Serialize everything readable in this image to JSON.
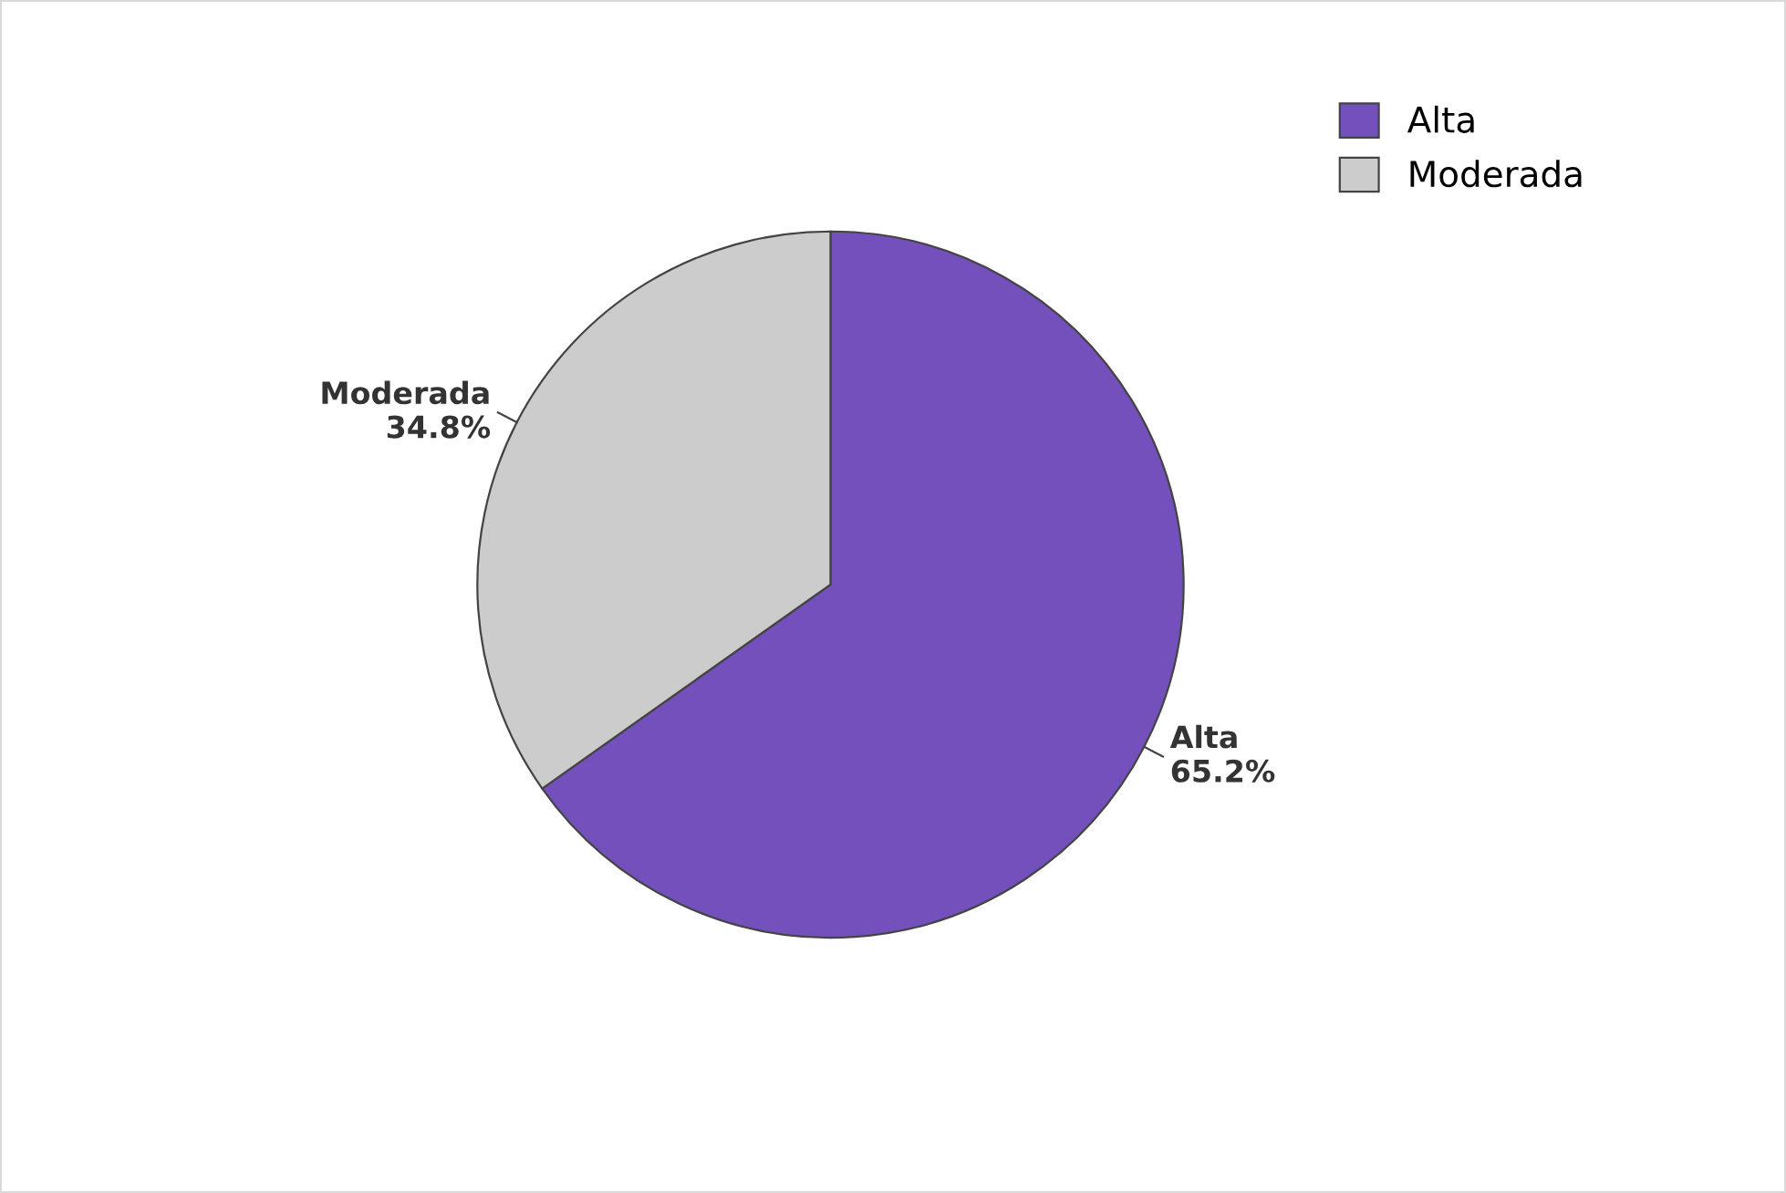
{
  "chart_data": {
    "type": "pie",
    "categories": [
      "Alta",
      "Moderada"
    ],
    "values": [
      65.2,
      34.8
    ],
    "value_labels": [
      "65.2%",
      "34.8%"
    ],
    "colors": [
      "#7450bd",
      "#cccccc"
    ],
    "legend": "top right"
  }
}
